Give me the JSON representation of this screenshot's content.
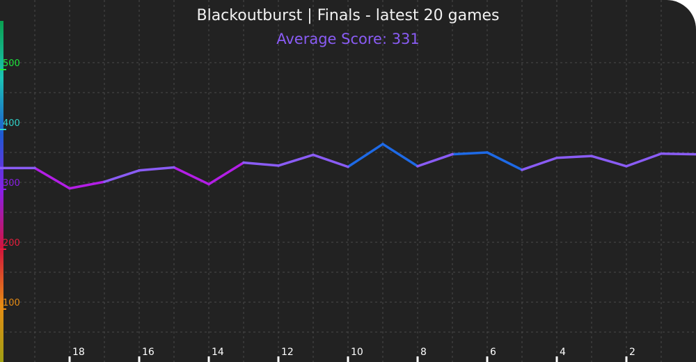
{
  "chart_data": {
    "type": "line",
    "title": "Blackoutburst | Finals - latest 20 games",
    "subtitle": "Average Score: 331",
    "x": [
      20,
      19,
      18,
      17,
      16,
      15,
      14,
      13,
      12,
      11,
      10,
      9,
      8,
      7,
      6,
      5,
      4,
      3,
      2,
      1
    ],
    "x_ticks": [
      18,
      16,
      14,
      12,
      10,
      8,
      6,
      4,
      2
    ],
    "values": [
      324,
      324,
      290,
      301,
      320,
      325,
      297,
      333,
      328,
      346,
      326,
      364,
      327,
      347,
      350,
      321,
      341,
      344,
      327,
      348
    ],
    "xlim": [
      20,
      0
    ],
    "ylim": [
      0,
      550
    ],
    "y_ticks": [
      100,
      200,
      300,
      400,
      500
    ],
    "grid": true,
    "colors": {
      "background": "#222222",
      "grid": "#4a4a4a",
      "title": "#f2f2f2",
      "subtitle": "#8a5cf5",
      "line_default": "#8a5cf5",
      "line_high": "#1e6ae6",
      "line_low": "#b31ee6",
      "axis_gradient": [
        "#0aa050",
        "#1bc4b4",
        "#1e5ad2",
        "#8a1ee6",
        "#d2143c",
        "#e68c14",
        "#a0a014"
      ],
      "ytick_colors": [
        "#e68c14",
        "#e61e3c",
        "#8a1ee6",
        "#30d2c8",
        "#1ee63c"
      ]
    }
  }
}
